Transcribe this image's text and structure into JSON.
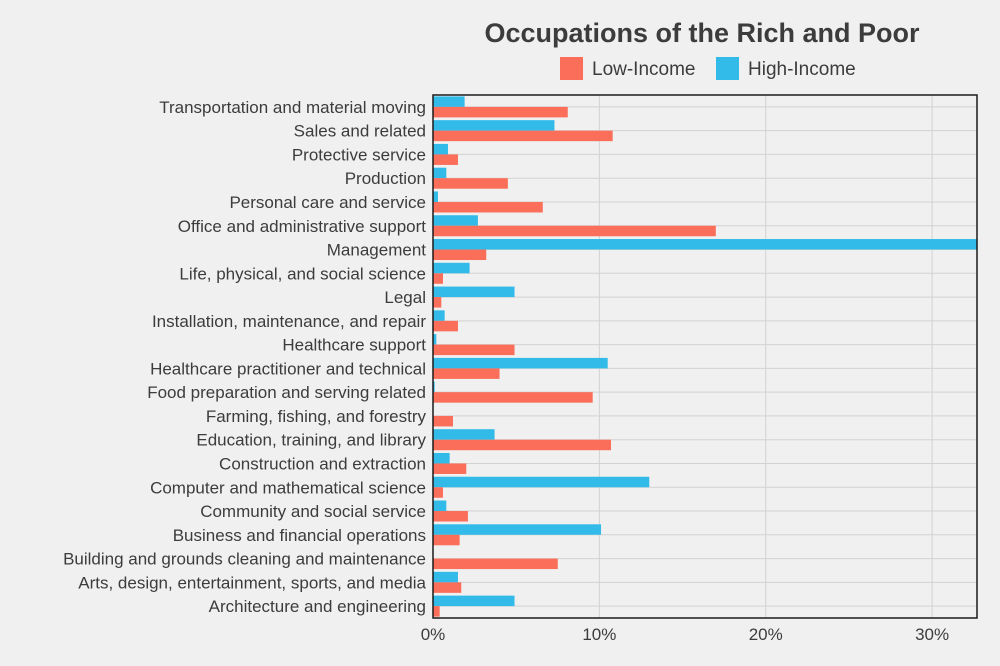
{
  "chart_data": {
    "type": "bar",
    "orientation": "horizontal",
    "title": "Occupations of the Rich and Poor",
    "xlabel": "",
    "ylabel": "",
    "xlim": [
      0,
      32.7
    ],
    "x_ticks": [
      {
        "value": 0,
        "label": "0%"
      },
      {
        "value": 10,
        "label": "10%"
      },
      {
        "value": 20,
        "label": "20%"
      },
      {
        "value": 30,
        "label": "30%"
      }
    ],
    "legend_position": "top",
    "categories": [
      "Transportation and material moving",
      "Sales and related",
      "Protective service",
      "Production",
      "Personal care and service",
      "Office and administrative support",
      "Management",
      "Life, physical, and social science",
      "Legal",
      "Installation, maintenance, and repair",
      "Healthcare support",
      "Healthcare practitioner and technical",
      "Food preparation and serving related",
      "Farming, fishing, and forestry",
      "Education, training, and library",
      "Construction and extraction",
      "Computer and mathematical science",
      "Community and social service",
      "Business and financial operations",
      "Building and grounds cleaning and maintenance",
      "Arts, design, entertainment, sports, and media",
      "Architecture and engineering"
    ],
    "series": [
      {
        "name": "Low-Income",
        "color": "#fa6e5a",
        "values": [
          8.1,
          10.8,
          1.5,
          4.5,
          6.6,
          17.0,
          3.2,
          0.6,
          0.5,
          1.5,
          4.9,
          4.0,
          9.6,
          1.2,
          10.7,
          2.0,
          0.6,
          2.1,
          1.6,
          7.5,
          1.7,
          0.4
        ]
      },
      {
        "name": "High-Income",
        "color": "#32bbe9",
        "values": [
          1.9,
          7.3,
          0.9,
          0.8,
          0.3,
          2.7,
          32.7,
          2.2,
          4.9,
          0.7,
          0.2,
          10.5,
          0.1,
          0.0,
          3.7,
          1.0,
          13.0,
          0.8,
          10.1,
          0.0,
          1.5,
          4.9
        ]
      }
    ]
  }
}
